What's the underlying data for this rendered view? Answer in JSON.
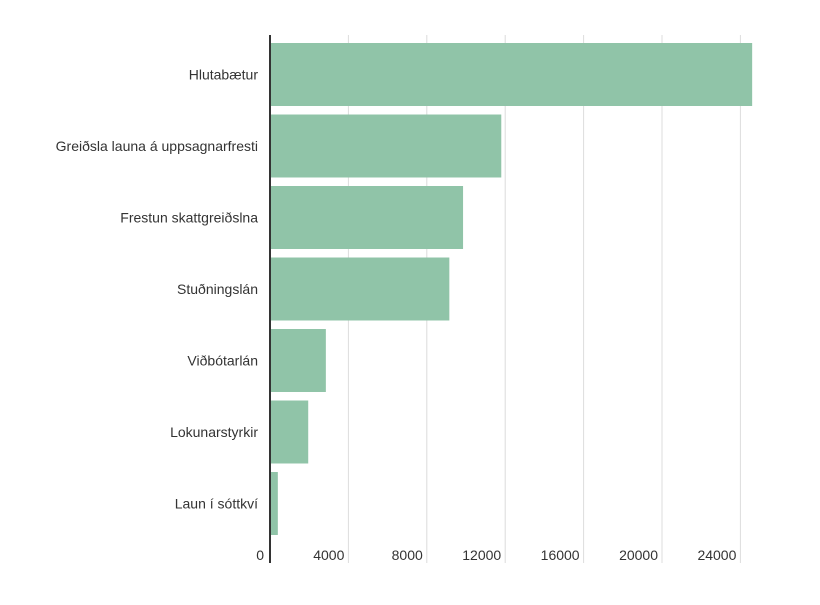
{
  "chart_data": {
    "type": "bar",
    "orientation": "horizontal",
    "categories": [
      "Hlutabætur",
      "Greiðsla launa á uppsagnarfresti",
      "Frestun skattgreiðslna",
      "Stuðningslán",
      "Viðbótarlán",
      "Lokunarstyrkir",
      "Laun í sóttkví"
    ],
    "values": [
      24600,
      11800,
      9850,
      9150,
      2850,
      1950,
      400
    ],
    "xlim": [
      0,
      28000
    ],
    "xticks": [
      0,
      4000,
      8000,
      12000,
      16000,
      20000,
      24000
    ],
    "grid": true,
    "bar_color": "#90c4a8",
    "axis_color": "#333333",
    "grid_color": "#dcdcdc",
    "title": "",
    "xlabel": "",
    "ylabel": ""
  }
}
